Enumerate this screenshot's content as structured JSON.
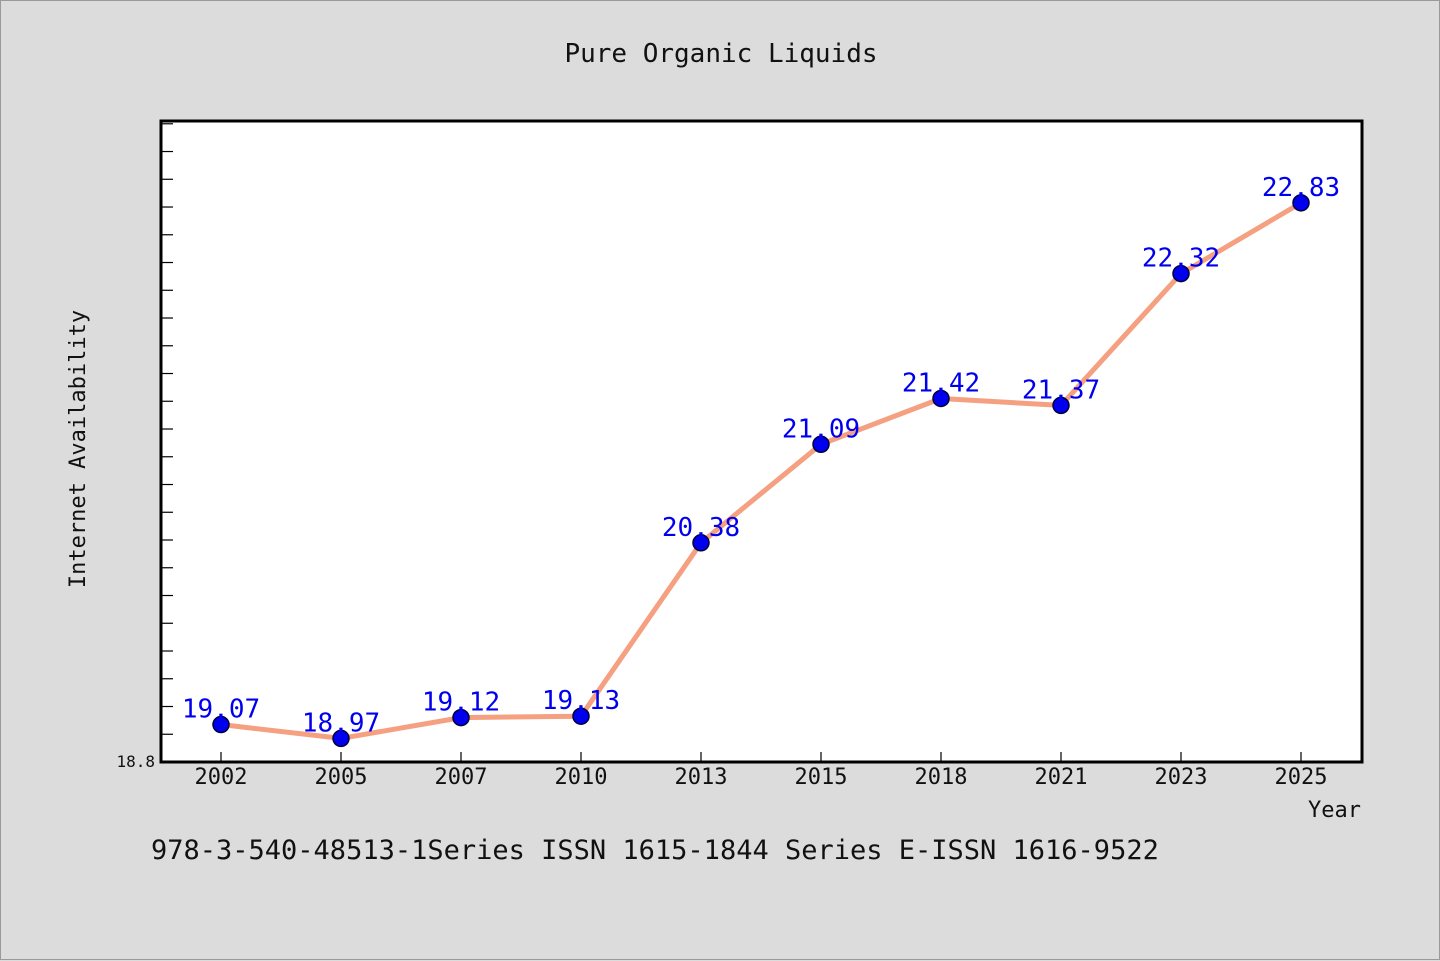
{
  "chart_data": {
    "type": "line",
    "title": "Pure Organic Liquids",
    "xlabel": "Year",
    "ylabel": "Internet Availability",
    "categories": [
      "2002",
      "2005",
      "2007",
      "2010",
      "2013",
      "2015",
      "2018",
      "2021",
      "2023",
      "2025"
    ],
    "series": [
      {
        "values": [
          19.07,
          18.97,
          19.12,
          19.13,
          20.38,
          21.09,
          21.42,
          21.37,
          22.32,
          22.83
        ]
      }
    ],
    "data_labels": [
      "19.07",
      "18.97",
      "19.12",
      "19.13",
      "20.38",
      "21.09",
      "21.42",
      "21.37",
      "22.32",
      "22.83"
    ],
    "y_tick_labels": [
      "18.8"
    ],
    "ylim": [
      18.8,
      23.42
    ],
    "grid": false,
    "legend": "none",
    "colors": {
      "line": "#f5a080",
      "marker": "#0000ee",
      "label": "#0000ee",
      "background": "#dcdcdc",
      "plot_background": "#ffffff"
    }
  },
  "footer": "978-3-540-48513-1Series ISSN 1615-1844 Series E-ISSN 1616-9522"
}
